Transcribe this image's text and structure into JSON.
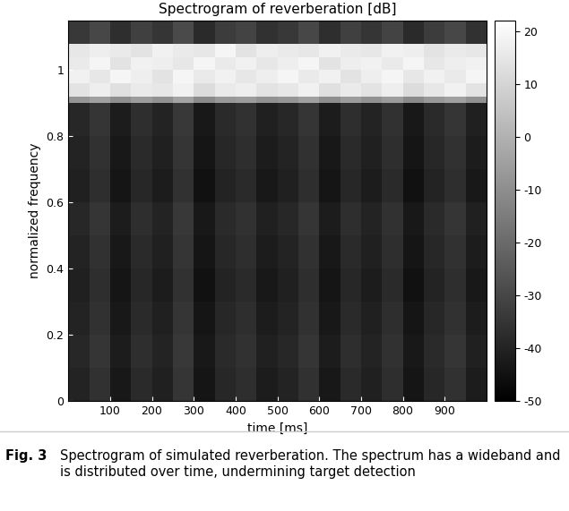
{
  "chart_data": {
    "type": "heatmap",
    "title": "Spectrogram of reverberation [dB]",
    "x_label": "time [ms]",
    "y_label": "normalized frequency",
    "caption_label": "Fig. 3",
    "caption": "Spectrogram of simulated reverberation. The spectrum has a wideband and is distributed over time, undermining target detection",
    "color": "gray",
    "x_edges": [
      0,
      50,
      100,
      150,
      200,
      250,
      300,
      350,
      400,
      450,
      500,
      550,
      600,
      650,
      700,
      750,
      800,
      850,
      900,
      950,
      1000
    ],
    "y_edges": [
      0,
      0.1,
      0.2,
      0.3,
      0.4,
      0.5,
      0.6,
      0.7,
      0.8,
      0.9,
      0.92,
      0.96,
      1.0,
      1.04,
      1.08,
      1.15
    ],
    "cells": [
      [
        -40,
        -36,
        -43,
        -38,
        -41,
        -35,
        -44,
        -39,
        -37,
        -42,
        -40,
        -36,
        -43,
        -38,
        -41,
        -37,
        -44,
        -39,
        -36,
        -42
      ],
      [
        -39,
        -35,
        -42,
        -37,
        -40,
        -34,
        -43,
        -38,
        -36,
        -41,
        -39,
        -35,
        -42,
        -37,
        -40,
        -36,
        -43,
        -38,
        -35,
        -41
      ],
      [
        -40,
        -36,
        -43,
        -38,
        -41,
        -35,
        -44,
        -39,
        -37,
        -42,
        -40,
        -36,
        -43,
        -38,
        -41,
        -37,
        -44,
        -39,
        -36,
        -42
      ],
      [
        -41,
        -37,
        -44,
        -39,
        -42,
        -36,
        -45,
        -40,
        -38,
        -43,
        -41,
        -37,
        -44,
        -39,
        -42,
        -38,
        -45,
        -40,
        -37,
        -43
      ],
      [
        -40,
        -36,
        -43,
        -38,
        -41,
        -35,
        -44,
        -39,
        -37,
        -42,
        -40,
        -36,
        -43,
        -38,
        -41,
        -37,
        -44,
        -39,
        -36,
        -42
      ],
      [
        -39,
        -35,
        -42,
        -37,
        -40,
        -34,
        -43,
        -38,
        -36,
        -41,
        -39,
        -35,
        -42,
        -37,
        -40,
        -36,
        -43,
        -38,
        -35,
        -41
      ],
      [
        -41,
        -37,
        -44,
        -39,
        -42,
        -36,
        -45,
        -40,
        -38,
        -43,
        -41,
        -37,
        -44,
        -39,
        -42,
        -38,
        -45,
        -40,
        -37,
        -43
      ],
      [
        -40,
        -36,
        -43,
        -38,
        -41,
        -35,
        -44,
        -39,
        -37,
        -42,
        -40,
        -36,
        -43,
        -38,
        -41,
        -37,
        -44,
        -39,
        -36,
        -42
      ],
      [
        -39,
        -35,
        -42,
        -37,
        -40,
        -34,
        -43,
        -38,
        -36,
        -41,
        -39,
        -35,
        -42,
        -37,
        -40,
        -36,
        -43,
        -38,
        -35,
        -41
      ],
      [
        -8,
        -5,
        -10,
        -6,
        -9,
        -4,
        -11,
        -7,
        -6,
        -9,
        -8,
        -5,
        -10,
        -6,
        -9,
        -6,
        -11,
        -7,
        -5,
        -9
      ],
      [
        14,
        17,
        13,
        16,
        15,
        18,
        12,
        16,
        17,
        14,
        15,
        18,
        13,
        16,
        14,
        17,
        12,
        15,
        18,
        14
      ],
      [
        18,
        15,
        19,
        17,
        14,
        19,
        16,
        18,
        15,
        17,
        19,
        16,
        18,
        14,
        17,
        19,
        15,
        18,
        16,
        19
      ],
      [
        16,
        19,
        14,
        18,
        17,
        15,
        19,
        16,
        18,
        15,
        17,
        19,
        14,
        17,
        18,
        16,
        19,
        15,
        17,
        18
      ],
      [
        15,
        17,
        16,
        14,
        18,
        16,
        15,
        19,
        14,
        17,
        16,
        15,
        18,
        16,
        15,
        18,
        17,
        14,
        16,
        15
      ],
      [
        -34,
        -30,
        -37,
        -32,
        -35,
        -29,
        -38,
        -33,
        -31,
        -36,
        -34,
        -30,
        -37,
        -32,
        -35,
        -31,
        -38,
        -33,
        -30,
        -36
      ]
    ],
    "xlim": [
      0,
      1000
    ],
    "xticks": [
      100,
      200,
      300,
      400,
      500,
      600,
      700,
      800,
      900
    ],
    "ylim": [
      0,
      1.15
    ],
    "yticks": [
      0,
      0.2,
      0.4,
      0.6,
      0.8,
      1
    ],
    "colorbar_range": [
      -50,
      22
    ],
    "colorbar_ticks": [
      -50,
      -40,
      -30,
      -20,
      -10,
      0,
      10,
      20
    ]
  }
}
